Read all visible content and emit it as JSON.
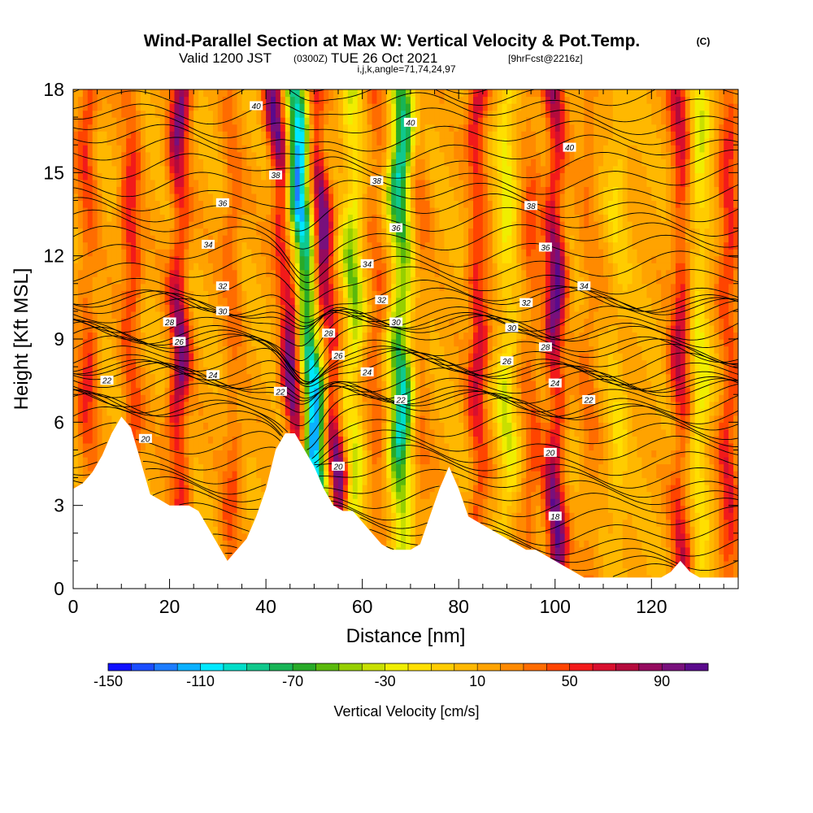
{
  "header": {
    "title_main": "Wind-Parallel Section at Max W: Vertical Velocity & Pot.Temp.",
    "title_copyright": "(C)",
    "valid_prefix": "Valid 1200 JST",
    "valid_utc": "(0300Z)",
    "valid_date": "TUE 26 Oct 2021",
    "forecast_info": "[9hrFcst@2216z]",
    "grid_info": "i,j,k,angle=71,74,24,97"
  },
  "chart_data": {
    "type": "heatmap",
    "title": "Wind-Parallel Section at Max W: Vertical Velocity & Pot.Temp.",
    "xlabel": "Distance [nm]",
    "ylabel": "Height [Kft MSL]",
    "xlim": [
      0,
      138
    ],
    "ylim": [
      0,
      18
    ],
    "x_ticks": [
      0,
      20,
      40,
      60,
      80,
      100,
      120
    ],
    "y_ticks": [
      0,
      3,
      6,
      9,
      12,
      15,
      18
    ],
    "terrain": {
      "x": [
        0,
        2,
        4,
        6,
        8,
        10,
        12,
        14,
        16,
        18,
        20,
        22,
        24,
        26,
        28,
        30,
        32,
        34,
        36,
        38,
        40,
        42,
        44,
        46,
        48,
        50,
        52,
        54,
        56,
        58,
        60,
        62,
        64,
        66,
        68,
        70,
        72,
        74,
        76,
        78,
        80,
        82,
        84,
        86,
        88,
        90,
        92,
        94,
        96,
        98,
        100,
        102,
        104,
        106,
        108,
        110,
        112,
        114,
        116,
        118,
        120,
        122,
        124,
        126,
        128,
        130,
        132,
        134,
        136,
        138
      ],
      "height_kft": [
        3.6,
        3.8,
        4.2,
        4.8,
        5.6,
        6.2,
        5.8,
        4.6,
        3.4,
        3.2,
        3.0,
        3.0,
        3.0,
        2.8,
        2.2,
        1.6,
        1.0,
        1.4,
        1.8,
        2.6,
        3.6,
        5.0,
        5.6,
        5.6,
        5.0,
        4.4,
        3.6,
        3.0,
        2.8,
        2.8,
        2.4,
        2.0,
        1.6,
        1.4,
        1.4,
        1.4,
        1.6,
        2.6,
        3.6,
        4.4,
        3.6,
        2.6,
        2.4,
        2.2,
        2.0,
        1.8,
        1.6,
        1.4,
        1.4,
        1.2,
        1.0,
        0.8,
        0.6,
        0.4,
        0.4,
        0.4,
        0.4,
        0.4,
        0.4,
        0.4,
        0.4,
        0.4,
        0.6,
        1.0,
        0.6,
        0.4,
        0.4,
        0.4,
        0.4,
        0.4
      ]
    },
    "vertical_velocity_bands": [
      {
        "x": 3,
        "w": 40
      },
      {
        "x": 12,
        "w": 50
      },
      {
        "x": 22,
        "w": 80
      },
      {
        "x": 33,
        "w": 30
      },
      {
        "x": 45,
        "w": 90
      },
      {
        "x": 49,
        "w": -150
      },
      {
        "x": 53,
        "w": 90
      },
      {
        "x": 58,
        "w": -60
      },
      {
        "x": 63,
        "w": 30
      },
      {
        "x": 68,
        "w": -110
      },
      {
        "x": 72,
        "w": 20
      },
      {
        "x": 84,
        "w": 60
      },
      {
        "x": 90,
        "w": -40
      },
      {
        "x": 95,
        "w": 30
      },
      {
        "x": 100,
        "w": 90
      },
      {
        "x": 107,
        "w": 20
      },
      {
        "x": 113,
        "w": -20
      },
      {
        "x": 126,
        "w": 60
      },
      {
        "x": 130,
        "w": -40
      },
      {
        "x": 136,
        "w": 50
      }
    ],
    "theta_levels": [
      18,
      20,
      22,
      24,
      26,
      28,
      30,
      32,
      34,
      36,
      38,
      40
    ],
    "contour_labels": [
      {
        "text": "40",
        "x": 38,
        "y": 17.4
      },
      {
        "text": "40",
        "x": 70,
        "y": 16.8
      },
      {
        "text": "40",
        "x": 103,
        "y": 15.9
      },
      {
        "text": "38",
        "x": 42,
        "y": 14.9
      },
      {
        "text": "38",
        "x": 63,
        "y": 14.7
      },
      {
        "text": "38",
        "x": 95,
        "y": 13.8
      },
      {
        "text": "36",
        "x": 31,
        "y": 13.9
      },
      {
        "text": "36",
        "x": 67,
        "y": 13.0
      },
      {
        "text": "36",
        "x": 98,
        "y": 12.3
      },
      {
        "text": "34",
        "x": 28,
        "y": 12.4
      },
      {
        "text": "34",
        "x": 61,
        "y": 11.7
      },
      {
        "text": "34",
        "x": 106,
        "y": 10.9
      },
      {
        "text": "32",
        "x": 31,
        "y": 10.9
      },
      {
        "text": "32",
        "x": 64,
        "y": 10.4
      },
      {
        "text": "32",
        "x": 94,
        "y": 10.3
      },
      {
        "text": "30",
        "x": 31,
        "y": 10.0
      },
      {
        "text": "30",
        "x": 67,
        "y": 9.6
      },
      {
        "text": "30",
        "x": 91,
        "y": 9.4
      },
      {
        "text": "28",
        "x": 20,
        "y": 9.6
      },
      {
        "text": "28",
        "x": 53,
        "y": 9.2
      },
      {
        "text": "28",
        "x": 98,
        "y": 8.7
      },
      {
        "text": "26",
        "x": 22,
        "y": 8.9
      },
      {
        "text": "26",
        "x": 55,
        "y": 8.4
      },
      {
        "text": "26",
        "x": 90,
        "y": 8.2
      },
      {
        "text": "24",
        "x": 29,
        "y": 7.7
      },
      {
        "text": "24",
        "x": 61,
        "y": 7.8
      },
      {
        "text": "24",
        "x": 100,
        "y": 7.4
      },
      {
        "text": "22",
        "x": 7,
        "y": 7.5
      },
      {
        "text": "22",
        "x": 43,
        "y": 7.1
      },
      {
        "text": "22",
        "x": 68,
        "y": 6.8
      },
      {
        "text": "22",
        "x": 107,
        "y": 6.8
      },
      {
        "text": "20",
        "x": 15,
        "y": 5.4
      },
      {
        "text": "20",
        "x": 55,
        "y": 4.4
      },
      {
        "text": "20",
        "x": 99,
        "y": 4.9
      },
      {
        "text": "18",
        "x": 100,
        "y": 2.6
      }
    ]
  },
  "colorbar": {
    "label": "Vertical Velocity [cm/s]",
    "tick_labels": [
      "-150",
      "-110",
      "-70",
      "-30",
      "10",
      "50",
      "90"
    ],
    "tick_values": [
      -150,
      -110,
      -70,
      -30,
      10,
      50,
      90
    ],
    "min": -150,
    "max": 110,
    "colors": [
      "#1010ff",
      "#1a4dff",
      "#1c7cff",
      "#0ab0ff",
      "#00e8ff",
      "#00ddc8",
      "#10c88c",
      "#18b456",
      "#28aa28",
      "#5ab90c",
      "#96cf00",
      "#c8df00",
      "#f0ee00",
      "#ffdf00",
      "#ffcc00",
      "#ffb800",
      "#ffa300",
      "#ff8a00",
      "#ff6c00",
      "#ff4400",
      "#f21a1a",
      "#d80f2e",
      "#b40a3c",
      "#940a5e",
      "#78107c",
      "#5a0a8c"
    ]
  }
}
